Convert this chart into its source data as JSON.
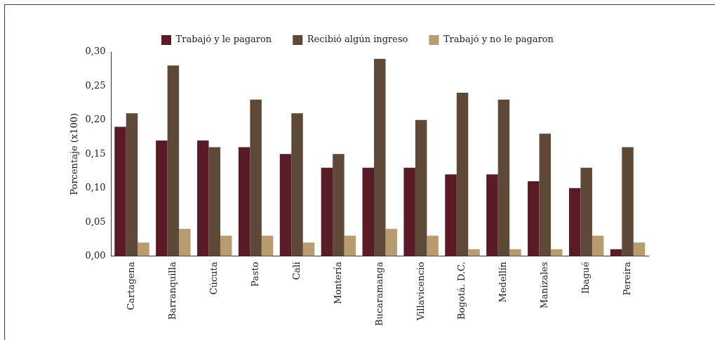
{
  "chart_data": {
    "type": "bar",
    "ylabel": "Porcentaje (x100)",
    "categories": [
      "Cartagena",
      "Barranquilla",
      "Cúcuta",
      "Pasto",
      "Cali",
      "Montería",
      "Bucaramanga",
      "Villavicencio",
      "Bogotá. D.C.",
      "Medellín",
      "Manizales",
      "Ibagué",
      "Pereira"
    ],
    "series": [
      {
        "name": "Trabajó y le pagaron",
        "color": "#5a1b27",
        "values": [
          0.19,
          0.17,
          0.17,
          0.16,
          0.15,
          0.13,
          0.13,
          0.13,
          0.12,
          0.12,
          0.11,
          0.1,
          0.01
        ]
      },
      {
        "name": "Recibió algún ingreso",
        "color": "#5e4838",
        "values": [
          0.21,
          0.28,
          0.16,
          0.23,
          0.21,
          0.15,
          0.29,
          0.2,
          0.24,
          0.23,
          0.18,
          0.13,
          0.16
        ]
      },
      {
        "name": "Trabajó y no le pagaron",
        "color": "#b89b6f",
        "values": [
          0.02,
          0.04,
          0.03,
          0.03,
          0.02,
          0.03,
          0.04,
          0.03,
          0.01,
          0.01,
          0.01,
          0.03,
          0.02
        ]
      }
    ],
    "ylim": [
      0,
      0.3
    ],
    "yticks": [
      {
        "value": 0,
        "label": "0,00"
      },
      {
        "value": 0.05,
        "label": "0,05"
      },
      {
        "value": 0.1,
        "label": "0,10"
      },
      {
        "value": 0.15,
        "label": "0,15"
      },
      {
        "value": 0.2,
        "label": "0,20"
      },
      {
        "value": 0.25,
        "label": "0,25"
      },
      {
        "value": 0.3,
        "label": "0,30"
      }
    ],
    "grid": false,
    "legend": "top"
  }
}
